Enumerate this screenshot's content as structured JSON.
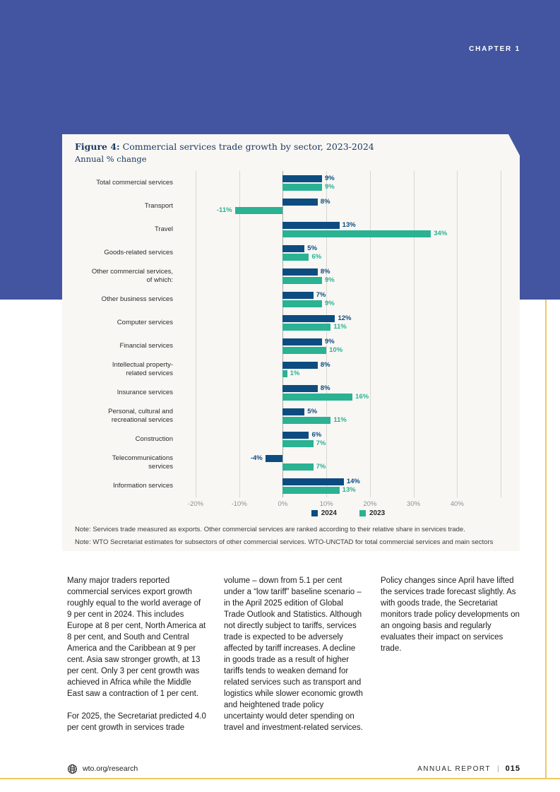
{
  "page": {
    "chapter_label": "CHAPTER 1",
    "footer": {
      "site": "wto.org/research",
      "report_label": "ANNUAL REPORT",
      "separator": "|",
      "page_number": "015"
    }
  },
  "figure": {
    "title_prefix": "Figure 4:",
    "title_rest": " Commercial services trade growth by sector, 2023-2024",
    "subtitle": "Annual % change",
    "notes": [
      "Note: Services trade measured as exports. Other commercial services are ranked according to their relative share in services trade.",
      "Note: WTO Secretariat estimates for subsectors of other commercial services. WTO-UNCTAD for total commercial services and main sectors"
    ]
  },
  "chart_data": {
    "type": "bar",
    "orientation": "horizontal",
    "title": "Commercial services trade growth by sector, 2023-2024",
    "subtitle": "Annual % change",
    "categories": [
      "Total commercial services",
      "Transport",
      "Travel",
      "Goods-related services",
      "Other commercial services, of which:",
      "Other business services",
      "Computer services",
      "Financial services",
      "Intellectual property-related services",
      "Insurance services",
      "Personal, cultural and recreational services",
      "Construction",
      "Telecommunications services",
      "Information services"
    ],
    "category_label_lines": [
      [
        "Total commercial services"
      ],
      [
        "Transport"
      ],
      [
        "Travel"
      ],
      [
        "Goods-related services"
      ],
      [
        "Other commercial services,",
        "of which:"
      ],
      [
        "Other business services"
      ],
      [
        "Computer services"
      ],
      [
        "Financial services"
      ],
      [
        "Intellectual property-",
        "related services"
      ],
      [
        "Insurance services"
      ],
      [
        "Personal, cultural and",
        "recreational services"
      ],
      [
        "Construction"
      ],
      [
        "Telecommunications",
        "services"
      ],
      [
        "Information services"
      ]
    ],
    "series": [
      {
        "name": "2024",
        "color": "#0D4C80",
        "values": [
          9,
          8,
          13,
          5,
          8,
          7,
          12,
          9,
          8,
          8,
          5,
          6,
          -4,
          14
        ]
      },
      {
        "name": "2023",
        "color": "#2AB292",
        "values": [
          9,
          -11,
          34,
          6,
          9,
          9,
          11,
          10,
          1,
          16,
          11,
          7,
          7,
          13
        ]
      }
    ],
    "value_suffix": "%",
    "xlim": [
      -20,
      50
    ],
    "x_ticks": [
      {
        "value": -20,
        "label": "-20%"
      },
      {
        "value": -10,
        "label": "-10%"
      },
      {
        "value": 0,
        "label": "0%"
      },
      {
        "value": 10,
        "label": "10%"
      },
      {
        "value": 20,
        "label": "20%"
      },
      {
        "value": 30,
        "label": "30%"
      },
      {
        "value": 40,
        "label": "40%"
      },
      {
        "value": 50,
        "label": ""
      }
    ],
    "grid": true,
    "legend_position": "bottom"
  },
  "body": {
    "columns": [
      {
        "paragraphs": [
          "Many major traders reported commercial services export growth roughly equal to the world average of 9 per cent in 2024. This includes Europe at 8 per cent, North America at 8 per cent, and South and Central America and the Caribbean at 9 per cent. Asia saw stronger growth, at 13 per cent. Only 3 per cent growth was achieved in Africa while the Middle East saw a contraction of 1 per cent.",
          "For 2025, the Secretariat predicted 4.0 per cent growth in services trade"
        ]
      },
      {
        "paragraphs": [
          "volume – down from 5.1 per cent under a “low tariff” baseline scenario – in the April 2025 edition of Global Trade Outlook and Statistics. Although not directly subject to tariffs, services trade is expected to be adversely affected by tariff increases. A decline in goods trade as a result of higher tariffs tends to weaken demand for related services such as transport and logistics while slower economic growth and heightened trade policy uncertainty would deter spending on travel and investment-related services."
        ]
      },
      {
        "paragraphs": [
          "Policy changes since April have lifted the services trade forecast slightly. As with goods trade, the Secretariat monitors trade policy developments on an ongoing basis and regularly evaluates their impact on services trade."
        ]
      }
    ]
  },
  "colors": {
    "banner_blue": "#4355A0",
    "card_background": "#F9F7F4",
    "series_2024_navy": "#0D4C80",
    "series_2023_teal": "#2AB292",
    "accent_gold": "#EFC75E",
    "title_navy": "#1C3A63"
  }
}
